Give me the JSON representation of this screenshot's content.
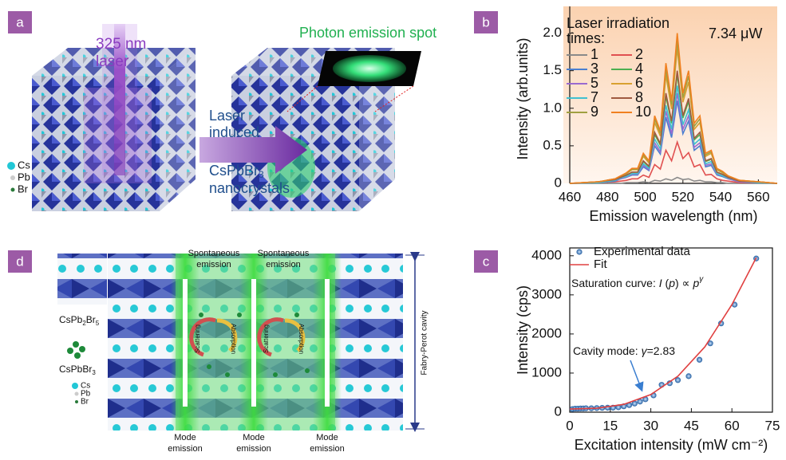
{
  "panel_labels": [
    "a",
    "b",
    "c",
    "d"
  ],
  "panel_a": {
    "laser": [
      "325 nm",
      "laser"
    ],
    "spot": "Photon emission spot",
    "process": [
      "Laser",
      "induced"
    ],
    "product": [
      "CsPbBr",
      "3"
    ],
    "product_text": "nanocrystals",
    "legend": [
      "Cs",
      "Pb",
      "Br"
    ]
  },
  "panel_d": {
    "spontaneous": [
      [
        "Spontaneous",
        "emission"
      ],
      [
        "Spontaneous",
        "emission"
      ]
    ],
    "mode": [
      [
        "Mode",
        "emission"
      ],
      [
        "Mode",
        "emission"
      ],
      [
        "Mode",
        "emission"
      ]
    ],
    "cavity": "Fabry-Perot cavity",
    "scattering": [
      "Scattering",
      "Scattering"
    ],
    "absorption": [
      "Absorption",
      "Absorption"
    ],
    "phase1": [
      "CsPb",
      "2",
      "Br",
      "5"
    ],
    "phase2": [
      "CsPbBr",
      "3"
    ],
    "legend": [
      "Cs",
      "Pb",
      "Br"
    ]
  },
  "chart_data": [
    {
      "type": "line",
      "xlabel": "Emission wavelength (nm)",
      "ylabel": "Intensity (arb.units)",
      "legend_title": [
        "Laser irradiation",
        "times:"
      ],
      "annotation": "7.34 μW",
      "xlim": [
        460,
        570
      ],
      "ylim": [
        0,
        2.25
      ],
      "xticks": [
        460,
        480,
        500,
        520,
        540,
        560
      ],
      "yticks": [
        0,
        0.5,
        {
          "value": 1,
          "label": "1.0"
        },
        1.5,
        {
          "value": 2,
          "label": "2.0"
        }
      ],
      "x": [
        460,
        475,
        484,
        487,
        490,
        493,
        496,
        499,
        502,
        505,
        508,
        511,
        514,
        517,
        520,
        523,
        526,
        529,
        532,
        535,
        538,
        541,
        544,
        550,
        560,
        570
      ],
      "series": [
        {
          "name": "1",
          "color": "#8a8a8a",
          "values": [
            0,
            0,
            0,
            0,
            0.01,
            0.01,
            0.01,
            0.02,
            0.01,
            0.04,
            0.03,
            0.06,
            0.04,
            0.08,
            0.05,
            0.06,
            0.03,
            0.04,
            0.02,
            0.02,
            0.01,
            0.01,
            0,
            0,
            0,
            0
          ]
        },
        {
          "name": "2",
          "color": "#e05050",
          "values": [
            0,
            0.01,
            0.02,
            0.03,
            0.04,
            0.06,
            0.06,
            0.11,
            0.08,
            0.25,
            0.19,
            0.44,
            0.3,
            0.55,
            0.33,
            0.41,
            0.22,
            0.25,
            0.11,
            0.12,
            0.06,
            0.04,
            0.03,
            0.01,
            0.01,
            0
          ]
        },
        {
          "name": "3",
          "color": "#4a7fd0",
          "values": [
            0,
            0.01,
            0.03,
            0.06,
            0.08,
            0.11,
            0.11,
            0.22,
            0.17,
            0.5,
            0.39,
            0.88,
            0.61,
            1.1,
            0.66,
            0.83,
            0.44,
            0.5,
            0.22,
            0.24,
            0.11,
            0.09,
            0.06,
            0.02,
            0.01,
            0
          ]
        },
        {
          "name": "4",
          "color": "#4caf50",
          "values": [
            0,
            0.01,
            0.04,
            0.07,
            0.1,
            0.15,
            0.15,
            0.29,
            0.22,
            0.65,
            0.51,
            1.16,
            0.8,
            1.45,
            0.87,
            1.09,
            0.58,
            0.65,
            0.29,
            0.32,
            0.15,
            0.12,
            0.07,
            0.03,
            0.01,
            0
          ]
        },
        {
          "name": "5",
          "color": "#9a6ad0",
          "values": [
            0,
            0.01,
            0.04,
            0.06,
            0.08,
            0.12,
            0.12,
            0.24,
            0.18,
            0.54,
            0.42,
            0.96,
            0.66,
            1.2,
            0.72,
            0.9,
            0.48,
            0.54,
            0.24,
            0.26,
            0.12,
            0.1,
            0.06,
            0.02,
            0.01,
            0
          ]
        },
        {
          "name": "6",
          "color": "#d8a030",
          "values": [
            0,
            0.02,
            0.05,
            0.09,
            0.13,
            0.18,
            0.18,
            0.36,
            0.27,
            0.81,
            0.63,
            1.44,
            0.99,
            1.8,
            1.08,
            1.35,
            0.72,
            0.81,
            0.36,
            0.4,
            0.18,
            0.14,
            0.09,
            0.04,
            0.02,
            0
          ]
        },
        {
          "name": "7",
          "color": "#40c0d0",
          "values": [
            0,
            0.01,
            0.04,
            0.07,
            0.09,
            0.13,
            0.13,
            0.26,
            0.2,
            0.59,
            0.46,
            1.04,
            0.72,
            1.3,
            0.78,
            0.98,
            0.52,
            0.59,
            0.26,
            0.29,
            0.13,
            0.1,
            0.07,
            0.03,
            0.01,
            0
          ]
        },
        {
          "name": "8",
          "color": "#a05a40",
          "values": [
            0,
            0.02,
            0.05,
            0.08,
            0.11,
            0.15,
            0.15,
            0.3,
            0.23,
            0.68,
            0.53,
            1.2,
            0.83,
            1.5,
            0.9,
            1.13,
            0.6,
            0.68,
            0.3,
            0.33,
            0.15,
            0.12,
            0.08,
            0.03,
            0.02,
            0
          ]
        },
        {
          "name": "9",
          "color": "#a0a040",
          "values": [
            0,
            0.02,
            0.06,
            0.1,
            0.13,
            0.19,
            0.19,
            0.38,
            0.29,
            0.86,
            0.67,
            1.52,
            1.05,
            1.9,
            1.14,
            1.43,
            0.76,
            0.86,
            0.38,
            0.42,
            0.19,
            0.15,
            0.1,
            0.04,
            0.02,
            0
          ]
        },
        {
          "name": "10",
          "color": "#f08020",
          "values": [
            0,
            0.02,
            0.06,
            0.1,
            0.14,
            0.2,
            0.2,
            0.4,
            0.3,
            0.9,
            0.7,
            1.6,
            1.1,
            2.0,
            1.2,
            1.5,
            0.8,
            0.9,
            0.4,
            0.44,
            0.2,
            0.16,
            0.1,
            0.04,
            0.02,
            0
          ]
        }
      ]
    },
    {
      "type": "scatter",
      "xlabel": "Excitation intensity (mW cm⁻²)",
      "ylabel": "Intensity (cps)",
      "formula": [
        "Saturation curve: ",
        "I",
        " (",
        "p",
        ") ∝ ",
        "p",
        "γ"
      ],
      "cavity": [
        "Cavity mode: ",
        "γ",
        "=2.83"
      ],
      "xlim": [
        0,
        75
      ],
      "ylim": [
        0,
        4200
      ],
      "xticks": [
        0,
        15,
        30,
        45,
        60,
        75
      ],
      "yticks": [
        0,
        1000,
        2000,
        3000,
        4000
      ],
      "series": [
        {
          "name": "Experimental data",
          "type": "scatter",
          "color": "#3a78b8",
          "x": [
            1,
            2,
            3,
            4,
            5,
            6,
            8,
            10,
            12,
            14,
            16,
            18,
            20,
            22,
            24,
            26,
            28,
            31,
            34,
            37,
            40,
            44,
            48,
            52,
            56,
            61,
            69
          ],
          "values": [
            80,
            90,
            90,
            95,
            95,
            100,
            100,
            105,
            110,
            115,
            115,
            125,
            150,
            180,
            220,
            270,
            330,
            430,
            700,
            740,
            820,
            920,
            1340,
            1760,
            2270,
            2750,
            3930
          ]
        },
        {
          "name": "Fit",
          "type": "line",
          "color": "#e04040",
          "x": [
            0,
            10,
            20,
            30,
            40,
            50,
            60,
            69
          ],
          "values": [
            80,
            100,
            200,
            450,
            920,
            1670,
            2750,
            3950
          ]
        }
      ]
    }
  ]
}
